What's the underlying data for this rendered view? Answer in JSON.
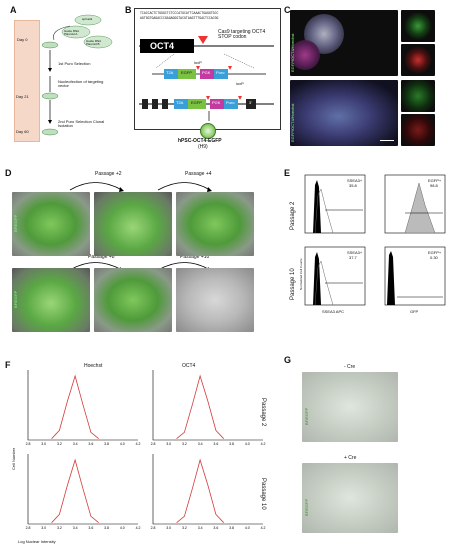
{
  "panels": {
    "A": {
      "label": "A",
      "plasmid_cas9": "spCas9",
      "plasmid_a": "Guide RNA Plasmid A",
      "plasmid_b": "Guide RNA Plasmid B",
      "days": [
        "Day 0",
        "Day 21",
        "Day 60"
      ],
      "steps": [
        "1st Puro Selection",
        "Nucleofection of targeting vector",
        "2nd Puro Selection Clonal Isolation"
      ]
    },
    "B": {
      "label": "B",
      "seq1": "TCACCACTCTGGGCTCTCCCATGCATTCAAACTGAGGTGCC",
      "seq2": "AGTGGTGAGACCCGAGAGGGTACGTAAGTTTGACTCCACGG",
      "gene": "OCT4",
      "cas9_text": "Cas9 targeting OCT4 STOP codon",
      "loxp": "loxP",
      "elements": [
        "T2A",
        "EGFP",
        "PGK",
        "Puro"
      ],
      "exon_label": "3'",
      "product": "hPSC-OCT4-EGFP",
      "product_line": "(H9)"
    },
    "C": {
      "label": "C",
      "row1_label": "EGFP/OCT4/Hoechst",
      "row2_label": "EGFP/OCT4/Hoechst"
    },
    "D": {
      "label": "D",
      "side_label": "BF/EGFP",
      "passages": [
        "Passage +2",
        "Passage +4",
        "Passage +8",
        "Passage +10"
      ]
    },
    "E": {
      "label": "E",
      "rows": [
        "Passage 2",
        "Passage 10"
      ],
      "ylabel": "Normalized Cell Counts",
      "xlabels": [
        "SSEA3 APC",
        "GFP"
      ],
      "gates": [
        {
          "name": "SSEA3+",
          "value": "35.8"
        },
        {
          "name": "EGFP+",
          "value": "98.8"
        },
        {
          "name": "SSEA3+",
          "value": "37.7"
        },
        {
          "name": "EGFP+",
          "value": "0.30"
        }
      ]
    },
    "F": {
      "label": "F",
      "col_titles": [
        "Hoechst",
        "OCT4"
      ],
      "rows": [
        "Passage 2",
        "Passage 10"
      ],
      "ylabel": "Cell Number",
      "xlabel": "Log Nuclear Intensity",
      "xticks": [
        "2.8",
        "3.0",
        "3.2",
        "3.4",
        "3.6",
        "3.8",
        "4.0",
        "4.2"
      ]
    },
    "G": {
      "label": "G",
      "minus": "- Cre",
      "plus": "+ Cre",
      "side_label": "BF/EGFP"
    }
  },
  "chart_data": [
    {
      "type": "line",
      "title": "Hoechst",
      "row": "Passage 2",
      "x": [
        3.1,
        3.2,
        3.3,
        3.4,
        3.5,
        3.6,
        3.7
      ],
      "values": [
        0.02,
        0.15,
        0.6,
        1.0,
        0.55,
        0.12,
        0.02
      ],
      "xlim": [
        2.8,
        4.2
      ]
    },
    {
      "type": "line",
      "title": "OCT4",
      "row": "Passage 2",
      "x": [
        3.1,
        3.2,
        3.3,
        3.4,
        3.5,
        3.6,
        3.7
      ],
      "values": [
        0.02,
        0.12,
        0.55,
        1.0,
        0.6,
        0.15,
        0.02
      ],
      "xlim": [
        2.8,
        4.2
      ]
    },
    {
      "type": "line",
      "title": "Hoechst",
      "row": "Passage 10",
      "x": [
        3.1,
        3.2,
        3.3,
        3.4,
        3.5,
        3.6,
        3.7
      ],
      "values": [
        0.02,
        0.15,
        0.6,
        1.0,
        0.55,
        0.12,
        0.02
      ],
      "xlim": [
        2.8,
        4.2
      ]
    },
    {
      "type": "line",
      "title": "OCT4",
      "row": "Passage 10",
      "x": [
        3.1,
        3.2,
        3.3,
        3.4,
        3.5,
        3.6,
        3.7
      ],
      "values": [
        0.02,
        0.12,
        0.55,
        1.0,
        0.6,
        0.15,
        0.02
      ],
      "xlim": [
        2.8,
        4.2
      ]
    }
  ]
}
